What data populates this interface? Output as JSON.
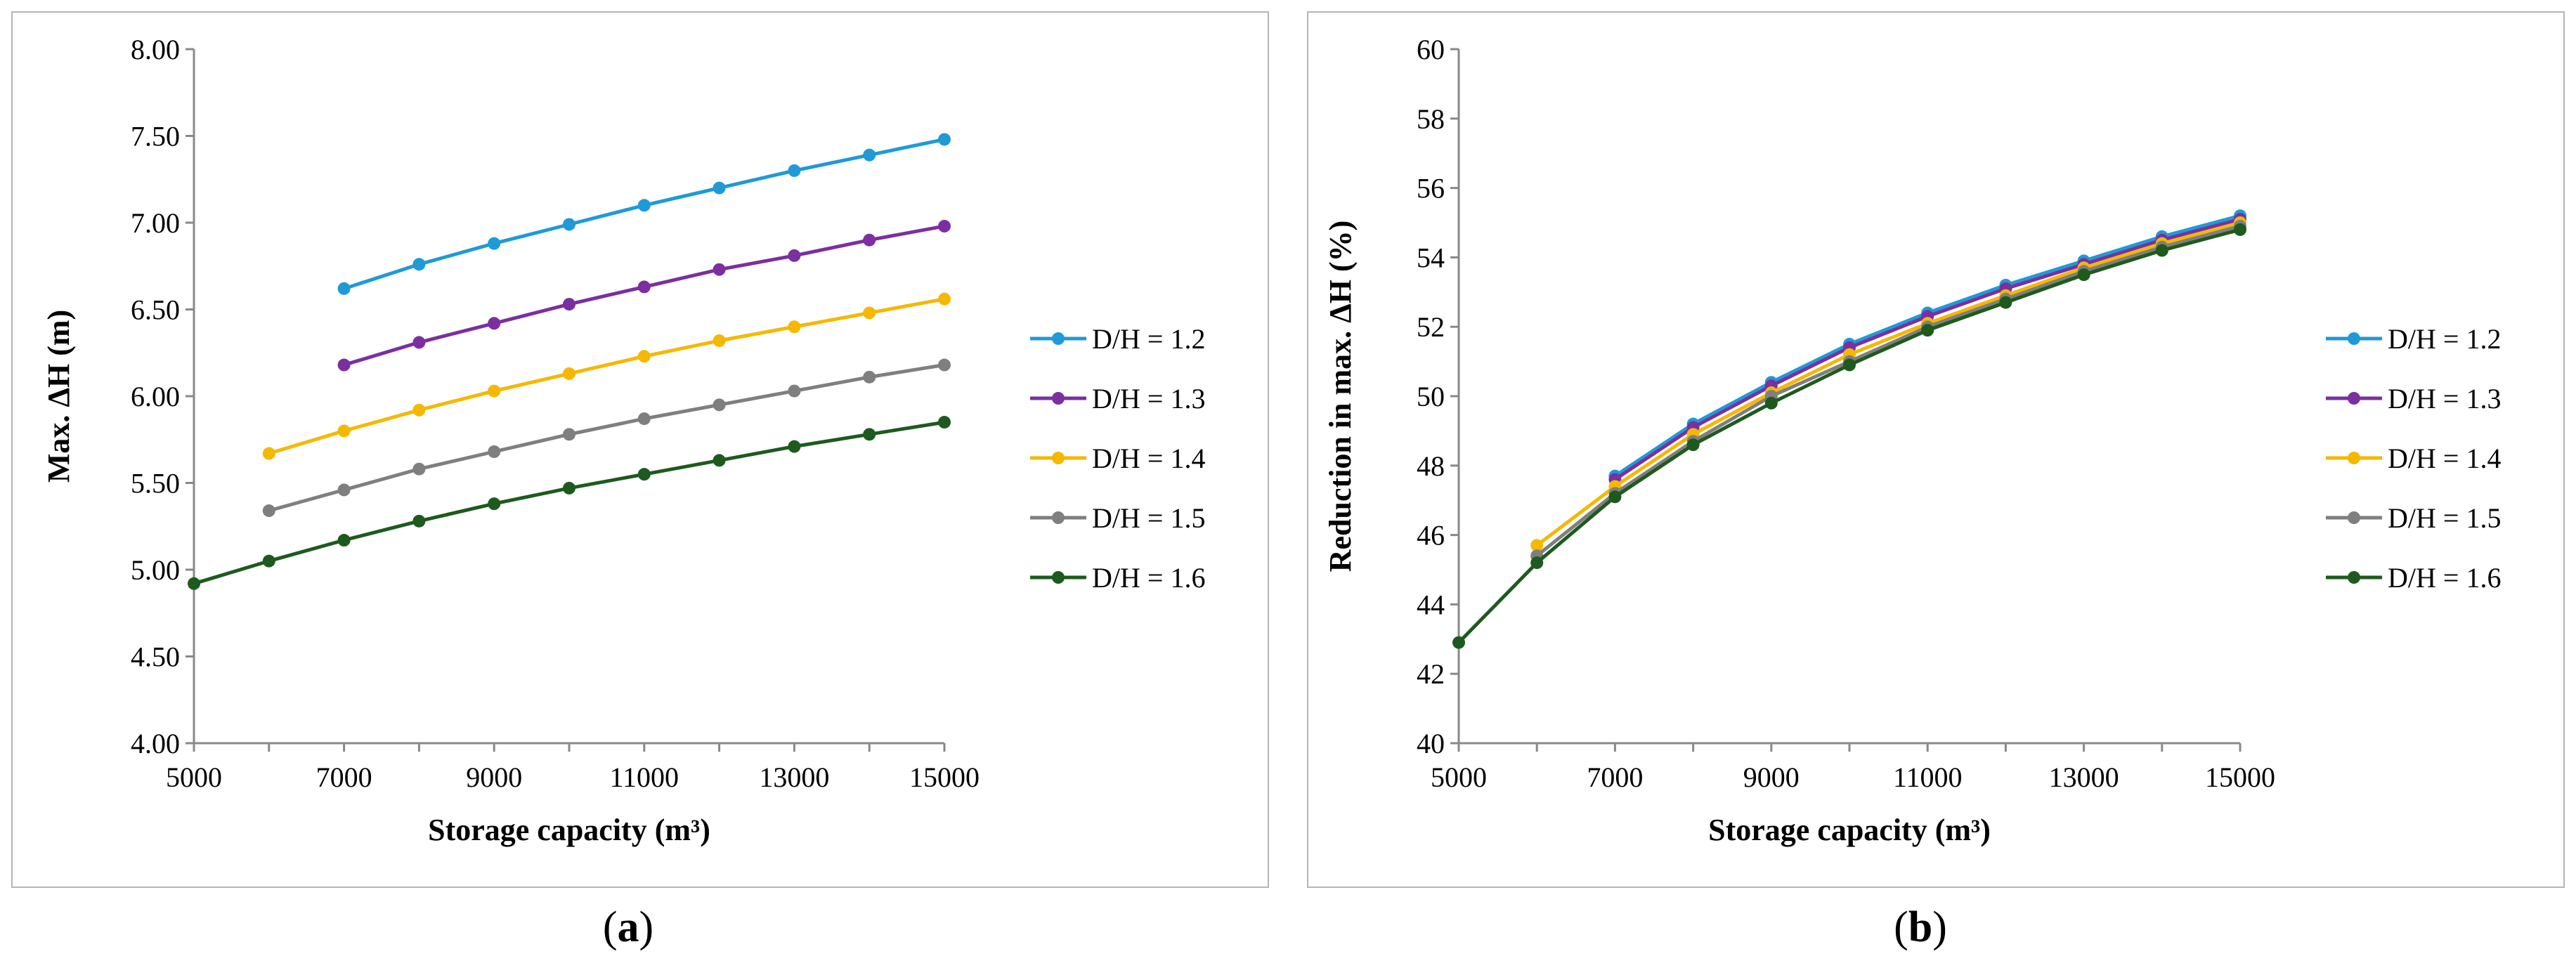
{
  "chart_data": [
    {
      "panel": "a",
      "type": "line",
      "title": "",
      "xlabel": "Storage capacity (m³)",
      "ylabel": "Max. ΔH (m)",
      "xlim": [
        5000,
        15000
      ],
      "ylim": [
        4.0,
        8.0
      ],
      "x_ticks": [
        "5000",
        "7000",
        "9000",
        "11000",
        "13000",
        "15000"
      ],
      "y_ticks": [
        "4.00",
        "4.50",
        "5.00",
        "5.50",
        "6.00",
        "6.50",
        "7.00",
        "7.50",
        "8.00"
      ],
      "legend_position": "right",
      "series": [
        {
          "name": "D/H = 1.2",
          "color": "#1f9ad6",
          "x": [
            7000,
            8000,
            9000,
            10000,
            11000,
            12000,
            13000,
            14000,
            15000
          ],
          "values": [
            6.62,
            6.76,
            6.88,
            6.99,
            7.1,
            7.2,
            7.3,
            7.39,
            7.48
          ]
        },
        {
          "name": "D/H = 1.3",
          "color": "#7b2fa0",
          "x": [
            7000,
            8000,
            9000,
            10000,
            11000,
            12000,
            13000,
            14000,
            15000
          ],
          "values": [
            6.18,
            6.31,
            6.42,
            6.53,
            6.63,
            6.73,
            6.81,
            6.9,
            6.98
          ]
        },
        {
          "name": "D/H = 1.4",
          "color": "#f5b800",
          "x": [
            6000,
            7000,
            8000,
            9000,
            10000,
            11000,
            12000,
            13000,
            14000,
            15000
          ],
          "values": [
            5.67,
            5.8,
            5.92,
            6.03,
            6.13,
            6.23,
            6.32,
            6.4,
            6.48,
            6.56
          ]
        },
        {
          "name": "D/H = 1.5",
          "color": "#7f7f7f",
          "x": [
            6000,
            7000,
            8000,
            9000,
            10000,
            11000,
            12000,
            13000,
            14000,
            15000
          ],
          "values": [
            5.34,
            5.46,
            5.58,
            5.68,
            5.78,
            5.87,
            5.95,
            6.03,
            6.11,
            6.18
          ]
        },
        {
          "name": "D/H = 1.6",
          "color": "#1e5a1e",
          "x": [
            5000,
            6000,
            7000,
            8000,
            9000,
            10000,
            11000,
            12000,
            13000,
            14000,
            15000
          ],
          "values": [
            4.92,
            5.05,
            5.17,
            5.28,
            5.38,
            5.47,
            5.55,
            5.63,
            5.71,
            5.78,
            5.85
          ]
        }
      ]
    },
    {
      "panel": "b",
      "type": "line",
      "title": "",
      "xlabel": "Storage capacity (m³)",
      "ylabel": "Reduction in max. ΔH (%)",
      "xlim": [
        5000,
        15000
      ],
      "ylim": [
        40,
        60
      ],
      "x_ticks": [
        "5000",
        "7000",
        "9000",
        "11000",
        "13000",
        "15000"
      ],
      "y_ticks": [
        "40",
        "42",
        "44",
        "46",
        "48",
        "50",
        "52",
        "54",
        "56",
        "58",
        "60"
      ],
      "legend_position": "right",
      "series": [
        {
          "name": "D/H = 1.2",
          "color": "#1f9ad6",
          "x": [
            7000,
            8000,
            9000,
            10000,
            11000,
            12000,
            13000,
            14000,
            15000
          ],
          "values": [
            47.7,
            49.2,
            50.4,
            51.5,
            52.4,
            53.2,
            53.9,
            54.6,
            55.2
          ]
        },
        {
          "name": "D/H = 1.3",
          "color": "#7b2fa0",
          "x": [
            7000,
            8000,
            9000,
            10000,
            11000,
            12000,
            13000,
            14000,
            15000
          ],
          "values": [
            47.6,
            49.1,
            50.3,
            51.4,
            52.3,
            53.1,
            53.8,
            54.5,
            55.1
          ]
        },
        {
          "name": "D/H = 1.4",
          "color": "#f5b800",
          "x": [
            6000,
            7000,
            8000,
            9000,
            10000,
            11000,
            12000,
            13000,
            14000,
            15000
          ],
          "values": [
            45.7,
            47.4,
            48.9,
            50.1,
            51.2,
            52.1,
            52.9,
            53.7,
            54.4,
            55.0
          ]
        },
        {
          "name": "D/H = 1.5",
          "color": "#7f7f7f",
          "x": [
            6000,
            7000,
            8000,
            9000,
            10000,
            11000,
            12000,
            13000,
            14000,
            15000
          ],
          "values": [
            45.4,
            47.2,
            48.7,
            50.0,
            51.0,
            52.0,
            52.8,
            53.6,
            54.3,
            54.9
          ]
        },
        {
          "name": "D/H = 1.6",
          "color": "#1e5a1e",
          "x": [
            5000,
            6000,
            7000,
            8000,
            9000,
            10000,
            11000,
            12000,
            13000,
            14000,
            15000
          ],
          "values": [
            42.9,
            45.2,
            47.1,
            48.6,
            49.8,
            50.9,
            51.9,
            52.7,
            53.5,
            54.2,
            54.8
          ]
        }
      ]
    }
  ],
  "captions": {
    "a": "a",
    "b": "b"
  }
}
